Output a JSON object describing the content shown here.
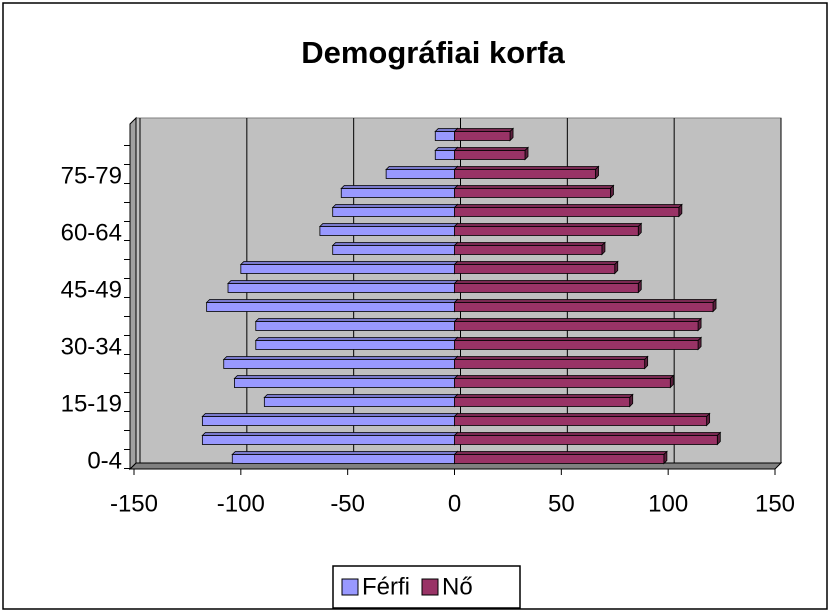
{
  "chart_data": {
    "type": "bar",
    "orientation": "horizontal",
    "title": "Demográfiai korfa",
    "categories": [
      "0-4",
      null,
      null,
      "15-19",
      null,
      null,
      "30-34",
      null,
      null,
      "45-49",
      null,
      null,
      "60-64",
      null,
      null,
      "75-79",
      null,
      null
    ],
    "series": [
      {
        "name": "Férfi",
        "color": "#9999ff",
        "values": [
          -104,
          -118,
          -118,
          -89,
          -103,
          -108,
          -93,
          -93,
          -116,
          -106,
          -100,
          -57,
          -63,
          -57,
          -53,
          -32,
          -9,
          -9
        ]
      },
      {
        "name": "Nő",
        "color": "#993366",
        "values": [
          98,
          123,
          118,
          82,
          101,
          89,
          114,
          114,
          121,
          86,
          75,
          69,
          86,
          105,
          73,
          66,
          33,
          26
        ]
      }
    ],
    "xlim": [
      -150,
      150
    ],
    "xticks": [
      -150,
      -100,
      -50,
      0,
      50,
      100,
      150
    ],
    "grid": true,
    "legend": "bottom"
  }
}
